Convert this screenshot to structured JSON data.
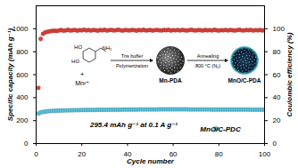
{
  "chart_data": {
    "type": "scatter",
    "x": [
      1,
      2,
      3,
      4,
      5,
      6,
      7,
      8,
      9,
      10,
      11,
      12,
      13,
      14,
      15,
      16,
      17,
      18,
      19,
      20,
      21,
      22,
      23,
      24,
      25,
      26,
      27,
      28,
      29,
      30,
      31,
      32,
      33,
      34,
      35,
      36,
      37,
      38,
      39,
      40,
      41,
      42,
      43,
      44,
      45,
      46,
      47,
      48,
      49,
      50,
      51,
      52,
      53,
      54,
      55,
      56,
      57,
      58,
      59,
      60,
      61,
      62,
      63,
      64,
      65,
      66,
      67,
      68,
      69,
      70,
      71,
      72,
      73,
      74,
      75,
      76,
      77,
      78,
      79,
      80,
      81,
      82,
      83,
      84,
      85,
      86,
      87,
      88,
      89,
      90,
      91,
      92,
      93,
      94,
      95,
      96,
      97,
      98,
      99,
      100
    ],
    "x_label": "Cycle number",
    "y_label": "Specific capacity (mAh g⁻¹)",
    "y2_label": "Coulombic efficiency (%)",
    "xlim": [
      0,
      100
    ],
    "xticks": [
      0,
      20,
      40,
      60,
      80,
      100
    ],
    "ylim": [
      0,
      1200
    ],
    "yticks": [
      0,
      200,
      400,
      600,
      800,
      1000
    ],
    "y2lim": [
      0,
      120
    ],
    "y2ticks": [
      0,
      20,
      40,
      60,
      80,
      100
    ],
    "grid": false,
    "legend": "bottom-right",
    "series": [
      {
        "name": "MnO/C-PDC",
        "color": "#5cc8e2",
        "marker": "circle",
        "axis": "y",
        "values": [
          262,
          271,
          276,
          279,
          281,
          283,
          284,
          285,
          286,
          287,
          288,
          288,
          289,
          289,
          290,
          290,
          291,
          291,
          291,
          292,
          292,
          292,
          293,
          293,
          293,
          293,
          294,
          294,
          294,
          294,
          294,
          295,
          295,
          295,
          295,
          295,
          295,
          296,
          296,
          296,
          296,
          296,
          296,
          296,
          297,
          297,
          297,
          297,
          297,
          297,
          297,
          297,
          297,
          298,
          298,
          298,
          298,
          298,
          298,
          298,
          298,
          298,
          298,
          298,
          298,
          298,
          297,
          297,
          297,
          297,
          297,
          297,
          297,
          297,
          297,
          297,
          296,
          296,
          296,
          296,
          296,
          296,
          296,
          296,
          296,
          296,
          296,
          296,
          296,
          296,
          296,
          296,
          296,
          295,
          295,
          295,
          295,
          295,
          295,
          295.4
        ]
      },
      {
        "color": "#e2403a",
        "marker": "circle",
        "axis": "y2",
        "values": [
          48.5,
          91.2,
          95.6,
          96.8,
          97.4,
          97.8,
          98.1,
          98.3,
          98.0,
          98.5,
          98.9,
          98.2,
          98.6,
          99.1,
          98.4,
          98.7,
          99.0,
          98.3,
          98.8,
          98.6,
          99.2,
          98.5,
          98.9,
          98.4,
          99.0,
          98.7,
          98.3,
          98.9,
          98.6,
          99.1,
          98.4,
          98.8,
          99.0,
          98.5,
          98.7,
          99.2,
          98.6,
          98.4,
          98.9,
          98.7,
          98.5,
          99.0,
          98.8,
          98.3,
          98.9,
          98.6,
          99.1,
          98.5,
          98.7,
          98.9,
          98.4,
          98.8,
          99.0,
          98.6,
          98.5,
          98.9,
          98.7,
          99.1,
          98.4,
          98.8,
          98.6,
          98.9,
          98.5,
          99.0,
          98.7,
          98.4,
          98.8,
          99.1,
          98.6,
          98.5,
          98.9,
          98.7,
          98.4,
          99.0,
          98.6,
          98.8,
          98.5,
          99.1,
          98.7,
          98.4,
          98.8,
          98.6,
          99.0,
          98.5,
          98.9,
          98.7,
          98.4,
          98.8,
          99.1,
          98.6,
          98.5,
          98.9,
          98.7,
          99.0,
          98.4,
          98.8,
          98.6,
          98.9,
          98.5,
          98.7
        ]
      }
    ],
    "annotation": "295.4 mAh g⁻¹ at 0.1 A g⁻¹",
    "inset": {
      "molecule_labels": [
        "HO",
        "HO",
        "NH₂"
      ],
      "plus": "+",
      "ion": "Mn²⁺",
      "step1": [
        "Tris buffer",
        "Polymerization"
      ],
      "step2": [
        "Annealing",
        "800 °C (N₂)"
      ],
      "products": [
        "Mn-PDA",
        "MnO/C-PDA"
      ]
    }
  }
}
